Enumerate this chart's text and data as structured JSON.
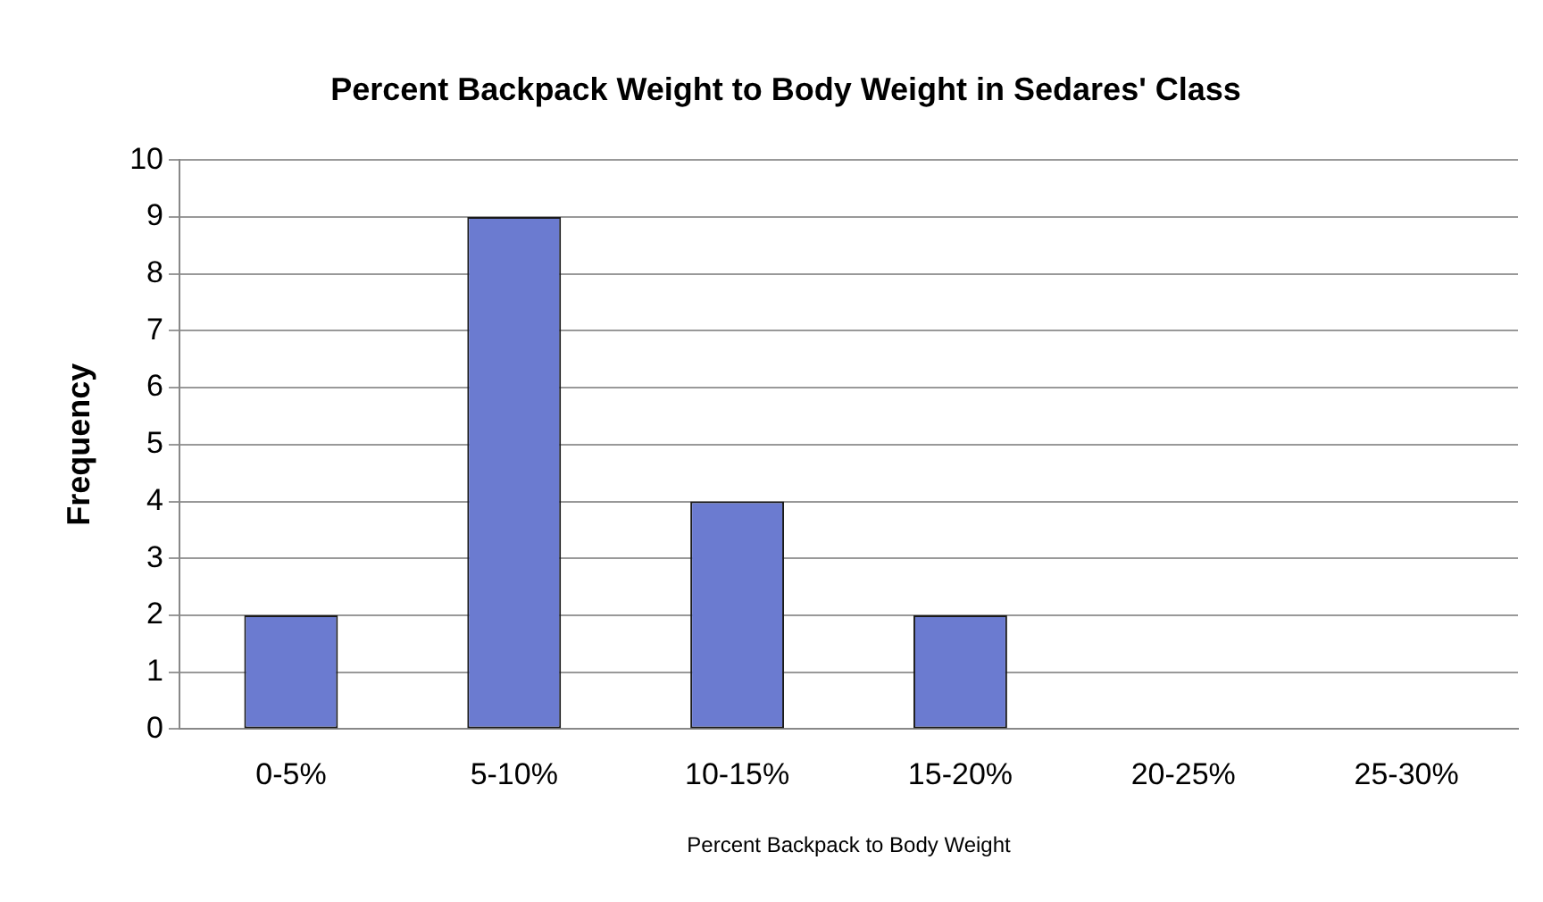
{
  "chart_data": {
    "type": "bar",
    "title": "Percent Backpack Weight to Body Weight in Sedares' Class",
    "xlabel": "Percent Backpack to Body Weight",
    "ylabel": "Frequency",
    "categories": [
      "0-5%",
      "5-10%",
      "10-15%",
      "15-20%",
      "20-25%",
      "25-30%"
    ],
    "values": [
      2,
      9,
      4,
      2,
      0,
      0
    ],
    "color": "#6b7bd0",
    "ylim": [
      0,
      10
    ],
    "yticks": [
      0,
      1,
      2,
      3,
      4,
      5,
      6,
      7,
      8,
      9,
      10
    ],
    "grid": "y",
    "legend": false
  }
}
